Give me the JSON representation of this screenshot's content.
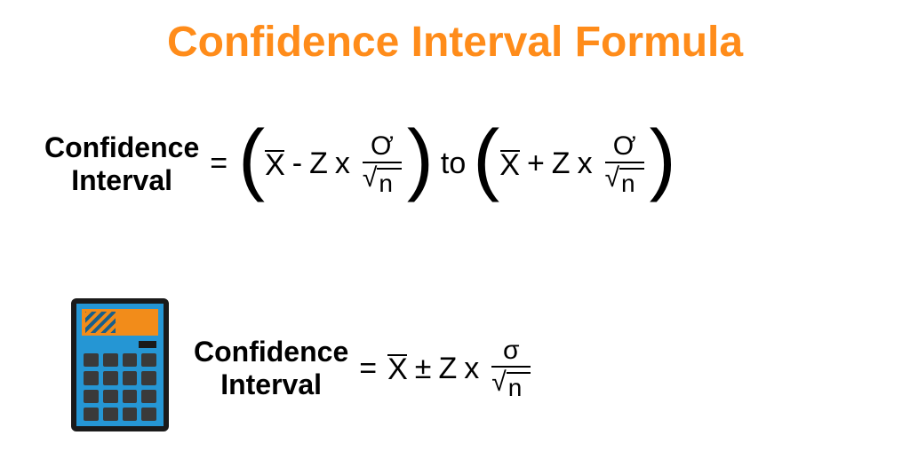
{
  "title": "Confidence Interval Formula",
  "colors": {
    "title": "#ff8c1a",
    "text": "#000000",
    "background": "#ffffff",
    "calc_body": "#2596d4",
    "calc_outline": "#1a1a1a",
    "calc_screen": "#f28c1a",
    "calc_button": "#3a3a3a"
  },
  "typography": {
    "title_fontsize": 48,
    "label_fontsize": 32,
    "formula_fontsize": 34
  },
  "formula1": {
    "label_line1": "Confidence",
    "label_line2": "Interval",
    "equals": "=",
    "lparen": "(",
    "rparen": ")",
    "xbar": "X",
    "minus": "-",
    "plus": "+",
    "z": "Z",
    "times": "x",
    "sigma": "Ơ",
    "sqrt_arg": "n",
    "to": "to"
  },
  "formula2": {
    "label_line1": "Confidence",
    "label_line2": "Interval",
    "equals": "=",
    "xbar": "X",
    "pm": "±",
    "z": "Z",
    "times": "x",
    "sigma": "σ",
    "sqrt_arg": "n"
  },
  "icon": {
    "name": "calculator-icon",
    "button_rows": 4,
    "button_cols": 4
  }
}
